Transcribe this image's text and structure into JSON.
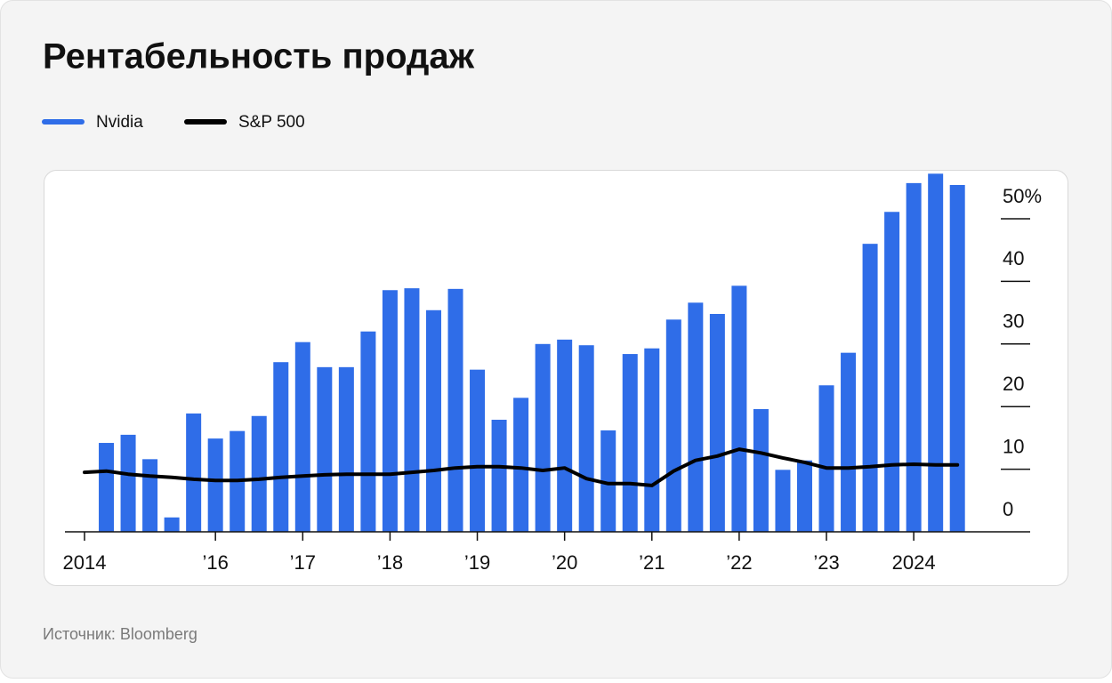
{
  "chart_data": {
    "type": "bar",
    "title": "Рентабельность продаж",
    "source": "Источник: Bloomberg",
    "categories": [
      "2014",
      null,
      null,
      null,
      null,
      null,
      "’16",
      null,
      null,
      null,
      "’17",
      null,
      null,
      null,
      "’18",
      null,
      null,
      null,
      "’19",
      null,
      null,
      null,
      "’20",
      null,
      null,
      null,
      "’21",
      null,
      null,
      null,
      "’22",
      null,
      null,
      null,
      "’23",
      null,
      null,
      null,
      "2024",
      null,
      null
    ],
    "series": [
      {
        "name": "Nvidia",
        "type": "bar",
        "color": "#2f6de8",
        "values": [
          null,
          14.2,
          15.5,
          11.6,
          2.3,
          18.9,
          14.9,
          16.1,
          18.5,
          27.1,
          30.3,
          26.3,
          26.3,
          32.0,
          38.6,
          38.9,
          35.4,
          38.8,
          25.9,
          17.9,
          21.4,
          30.0,
          30.7,
          29.8,
          16.2,
          28.4,
          29.3,
          33.9,
          36.6,
          34.8,
          39.3,
          19.6,
          9.9,
          11.4,
          23.4,
          28.6,
          46.0,
          51.1,
          55.7,
          57.2,
          55.4
        ]
      },
      {
        "name": "S&P 500",
        "type": "line",
        "color": "#000000",
        "values": [
          9.5,
          9.7,
          9.2,
          8.9,
          8.7,
          8.4,
          8.2,
          8.2,
          8.4,
          8.7,
          8.9,
          9.1,
          9.2,
          9.2,
          9.2,
          9.5,
          9.8,
          10.2,
          10.4,
          10.4,
          10.2,
          9.8,
          10.2,
          8.5,
          7.7,
          7.7,
          7.4,
          9.7,
          11.4,
          12.1,
          13.2,
          12.6,
          11.8,
          11.1,
          10.2,
          10.2,
          10.4,
          10.7,
          10.8,
          10.7,
          10.7
        ]
      }
    ],
    "ylim": [
      0,
      60
    ],
    "yticks": [
      0,
      10,
      20,
      30,
      40,
      {
        "value": 50,
        "label": "50%"
      }
    ]
  }
}
